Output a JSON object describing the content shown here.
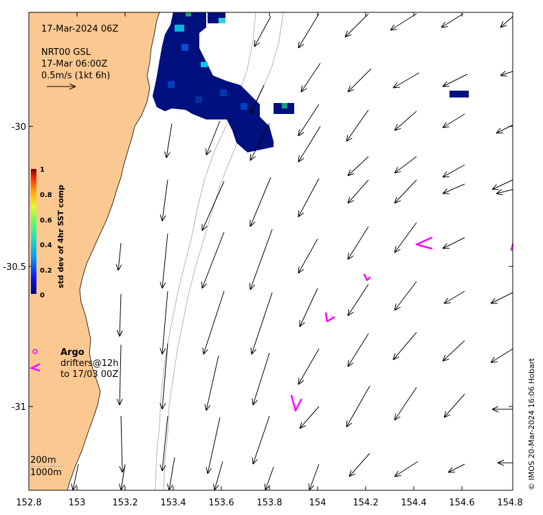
{
  "header": {
    "timestamp": "17-Mar-2024 06Z",
    "product": "NRT00 GSL",
    "product_time": "17-Mar 06:00Z",
    "scale_label": "0.5m/s (1kt 6h)"
  },
  "axes": {
    "x_ticks": [
      "152.8",
      "153",
      "153.2",
      "153.4",
      "153.6",
      "153.8",
      "154",
      "154.2",
      "154.4",
      "154.6",
      "154.8"
    ],
    "y_ticks": [
      "-30",
      "-30.5",
      "-31"
    ]
  },
  "colorbar": {
    "label": "std dev of 4hr SST comp",
    "ticks": [
      "0",
      "0.2",
      "0.4",
      "0.6",
      "0.8",
      "1"
    ],
    "colors": [
      "#00007f",
      "#0040ff",
      "#00c0ff",
      "#40ff80",
      "#c0ff00",
      "#ffc000",
      "#ff4000",
      "#7f0000"
    ]
  },
  "legend": {
    "argo": "Argo",
    "drifters": "drifters@12h",
    "drifters_to": "to 17/03 00Z",
    "isobath_200": "200m",
    "isobath_1000": "1000m"
  },
  "credit": "© IMOS 20-Mar-2024 16:06 Hobart",
  "colors": {
    "land": "#fcc892",
    "drifter": "#ff00ff",
    "arrow": "#000000",
    "isobath": "#b4b4b4"
  },
  "extent": {
    "lon": [
      152.8,
      154.8
    ],
    "lat": [
      -31.3,
      -29.6
    ]
  }
}
